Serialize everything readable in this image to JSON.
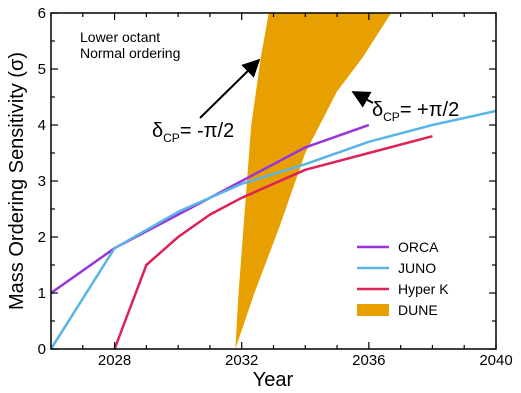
{
  "chart_data": {
    "type": "line",
    "xlabel": "Year",
    "ylabel": "Mass Ordering Sensitivity (σ)",
    "xlim": [
      2026,
      2040
    ],
    "ylim": [
      0,
      6
    ],
    "xticks": [
      2028,
      2032,
      2036,
      2040
    ],
    "yticks": [
      0,
      1,
      2,
      3,
      4,
      5,
      6
    ],
    "annotation_lines": [
      "Lower octant",
      "Normal ordering"
    ],
    "delta_labels": {
      "left": {
        "prefix": "δ",
        "sub": "CP",
        "value": "= -π/2"
      },
      "right": {
        "prefix": "δ",
        "sub": "CP",
        "value": "= +π/2"
      }
    },
    "legend_position": "lower-right",
    "series": [
      {
        "name": "ORCA",
        "color": "#9933dd",
        "x": [
          2026,
          2028,
          2030,
          2032,
          2034,
          2036
        ],
        "y": [
          1.0,
          1.8,
          2.4,
          3.0,
          3.6,
          4.0
        ]
      },
      {
        "name": "JUNO",
        "color": "#5ab4e6",
        "x": [
          2026,
          2028,
          2030,
          2032,
          2034,
          2036,
          2038,
          2040
        ],
        "y": [
          0.0,
          1.8,
          2.45,
          2.95,
          3.3,
          3.7,
          4.0,
          4.25
        ]
      },
      {
        "name": "Hyper K",
        "color": "#dd2255",
        "x": [
          2028,
          2029,
          2030,
          2031,
          2032,
          2034,
          2036,
          2038
        ],
        "y": [
          0.0,
          1.5,
          2.0,
          2.4,
          2.7,
          3.2,
          3.5,
          3.8
        ]
      }
    ],
    "band": {
      "name": "DUNE",
      "color": "#e8a000",
      "lower": {
        "x": [
          2031.8,
          2032.4,
          2033.2,
          2034.0,
          2035.0,
          2035.8,
          2036.7
        ],
        "y": [
          0.0,
          1.0,
          2.2,
          3.5,
          4.6,
          5.2,
          6.0
        ]
      },
      "upper": {
        "x": [
          2031.8,
          2031.9,
          2032.1,
          2032.3,
          2032.6,
          2032.85
        ],
        "y": [
          0.0,
          1.0,
          2.5,
          4.0,
          5.2,
          6.0
        ]
      }
    }
  }
}
